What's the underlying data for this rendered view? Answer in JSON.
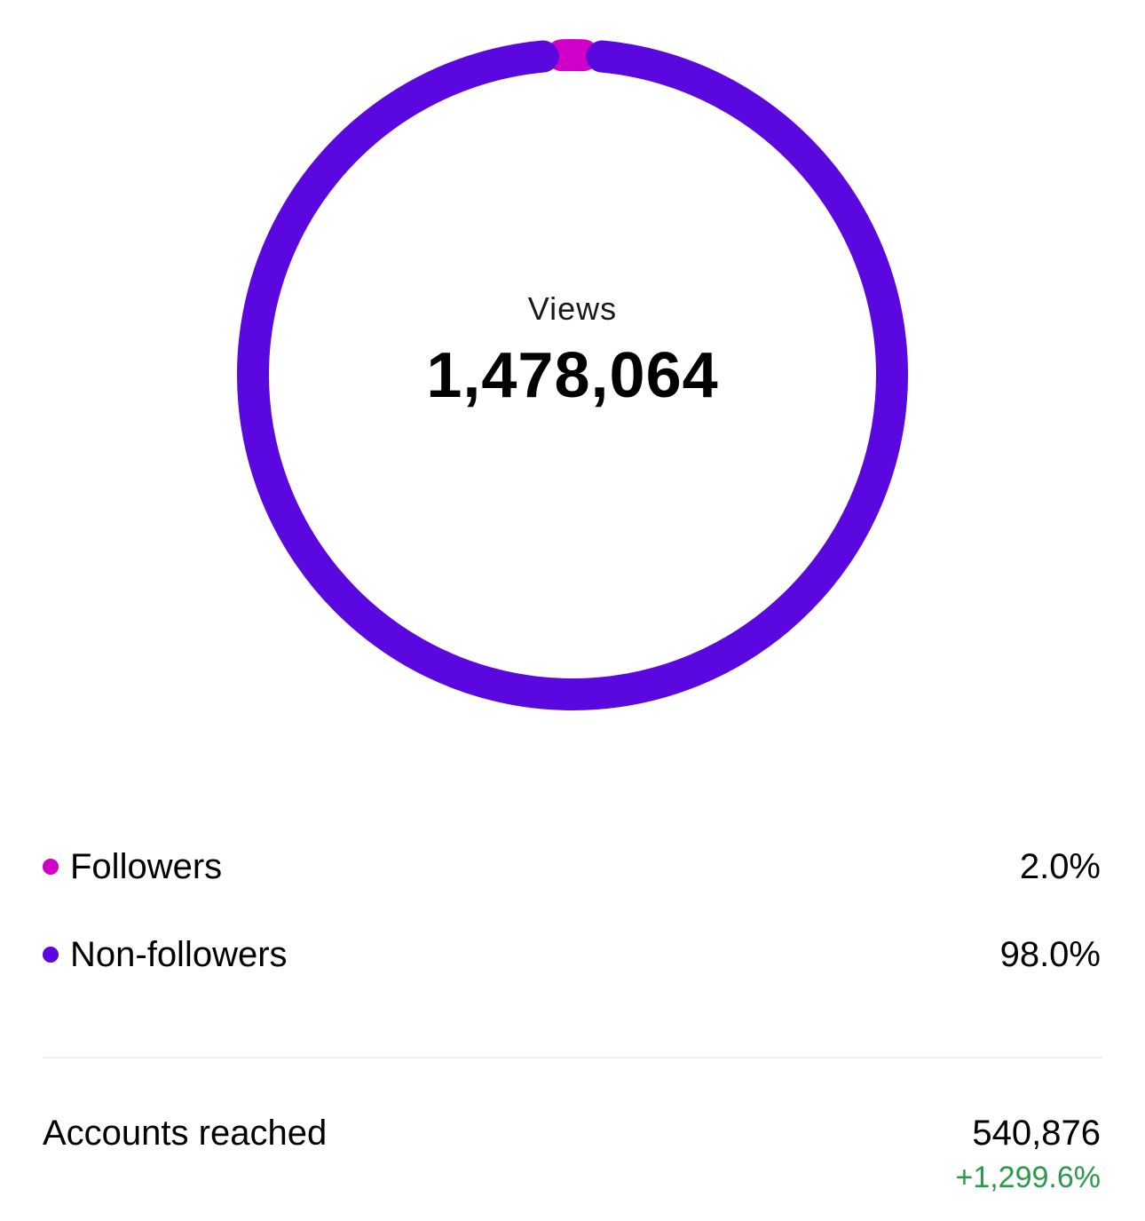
{
  "chart_data": {
    "type": "pie",
    "style": "donut",
    "center_label": "Views",
    "center_value": "1,478,064",
    "series": [
      {
        "name": "Followers",
        "value": 2.0,
        "value_label": "2.0%",
        "color": "#d100c8"
      },
      {
        "name": "Non-followers",
        "value": 98.0,
        "value_label": "98.0%",
        "color": "#5a07e0"
      }
    ]
  },
  "metrics": {
    "accounts_reached": {
      "label": "Accounts reached",
      "value": "540,876",
      "change": "+1,299.6%",
      "change_color": "#2a9a4b"
    }
  },
  "colors": {
    "followers": "#d100c8",
    "non_followers": "#5a07e0",
    "positive_change": "#2a9a4b",
    "divider": "#efefef"
  }
}
